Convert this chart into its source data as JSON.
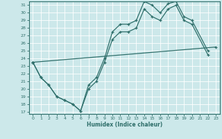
{
  "xlabel": "Humidex (Indice chaleur)",
  "bg_color": "#cce8ea",
  "grid_color": "#ffffff",
  "line_color": "#2e6e6a",
  "xlim": [
    -0.5,
    23.5
  ],
  "ylim": [
    16.7,
    31.5
  ],
  "xticks": [
    0,
    1,
    2,
    3,
    4,
    5,
    6,
    7,
    8,
    9,
    10,
    11,
    12,
    13,
    14,
    15,
    16,
    17,
    18,
    19,
    20,
    21,
    22,
    23
  ],
  "yticks": [
    17,
    18,
    19,
    20,
    21,
    22,
    23,
    24,
    25,
    26,
    27,
    28,
    29,
    30,
    31
  ],
  "line1": {
    "x": [
      0,
      1,
      2,
      3,
      4,
      5,
      6,
      7,
      8,
      9,
      10,
      11,
      12,
      13,
      14,
      15,
      16,
      17,
      18,
      19,
      20,
      22
    ],
    "y": [
      23.5,
      21.5,
      20.5,
      19.0,
      18.5,
      18.0,
      17.1,
      20.5,
      21.5,
      24.0,
      27.5,
      28.5,
      28.5,
      29.0,
      31.5,
      31.0,
      30.0,
      31.2,
      31.5,
      29.5,
      29.0,
      25.0
    ]
  },
  "line2": {
    "x": [
      0,
      1,
      2,
      3,
      4,
      5,
      6,
      7,
      8,
      9,
      10,
      11,
      12,
      13,
      14,
      15,
      16,
      17,
      18,
      19,
      20,
      22
    ],
    "y": [
      23.5,
      21.5,
      20.5,
      19.0,
      18.5,
      18.0,
      17.1,
      20.0,
      21.0,
      23.5,
      26.5,
      27.5,
      27.5,
      28.0,
      30.5,
      29.5,
      29.0,
      30.5,
      31.0,
      29.0,
      28.5,
      24.5
    ]
  },
  "line3": {
    "x": [
      0,
      23
    ],
    "y": [
      23.5,
      25.5
    ]
  }
}
